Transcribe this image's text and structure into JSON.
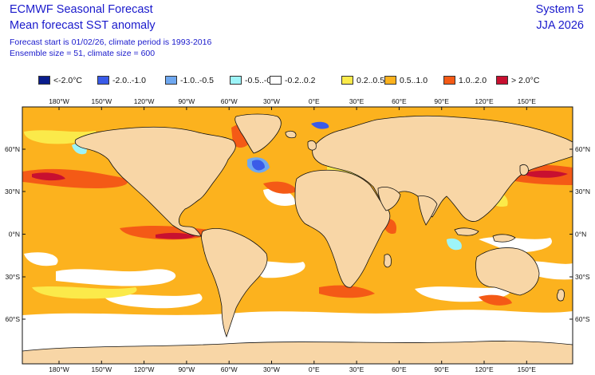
{
  "header": {
    "title_line1": "ECMWF Seasonal Forecast",
    "title_line2": "Mean forecast SST anomaly",
    "meta_line1": "Forecast start is 01/02/26, climate period is 1993-2016",
    "meta_line2": "Ensemble size = 51, climate size = 600",
    "system": "System 5",
    "season": "JJA 2026"
  },
  "legend": [
    {
      "label": "<-2.0°C",
      "color": "#0a1d8c"
    },
    {
      "label": "-2.0..-1.0",
      "color": "#3a5be8"
    },
    {
      "label": "-1.0..-0.5",
      "color": "#6fa8f0"
    },
    {
      "label": "-0.5..-0.2",
      "color": "#9df4f8"
    },
    {
      "label": "-0.2..0.2",
      "color": "#ffffff"
    },
    {
      "label": "0.2..0.5",
      "color": "#fbea4a"
    },
    {
      "label": "0.5..1.0",
      "color": "#fcb21e"
    },
    {
      "label": "1.0..2.0",
      "color": "#f45a16"
    },
    {
      "label": "> 2.0°C",
      "color": "#c81030"
    }
  ],
  "map": {
    "projection": "equirectangular",
    "land_color": "#f8d6a6",
    "top_lon_labels": [
      "180°W",
      "150°W",
      "120°W",
      "90°W",
      "60°W",
      "30°W",
      "0°E",
      "30°E",
      "60°E",
      "90°E",
      "120°E",
      "150°E"
    ],
    "bottom_lon_labels": [
      "180°W",
      "150°W",
      "120°W",
      "90°W",
      "60°W",
      "30°W",
      "0°E",
      "30°E",
      "60°E",
      "90°E",
      "120°E",
      "150°E"
    ],
    "left_lat_labels": [
      "60°N",
      "30°N",
      "0°N",
      "30°S",
      "60°S"
    ],
    "right_lat_labels": [
      "60°N",
      "30°N",
      "0°N",
      "30°S",
      "60°S"
    ]
  }
}
